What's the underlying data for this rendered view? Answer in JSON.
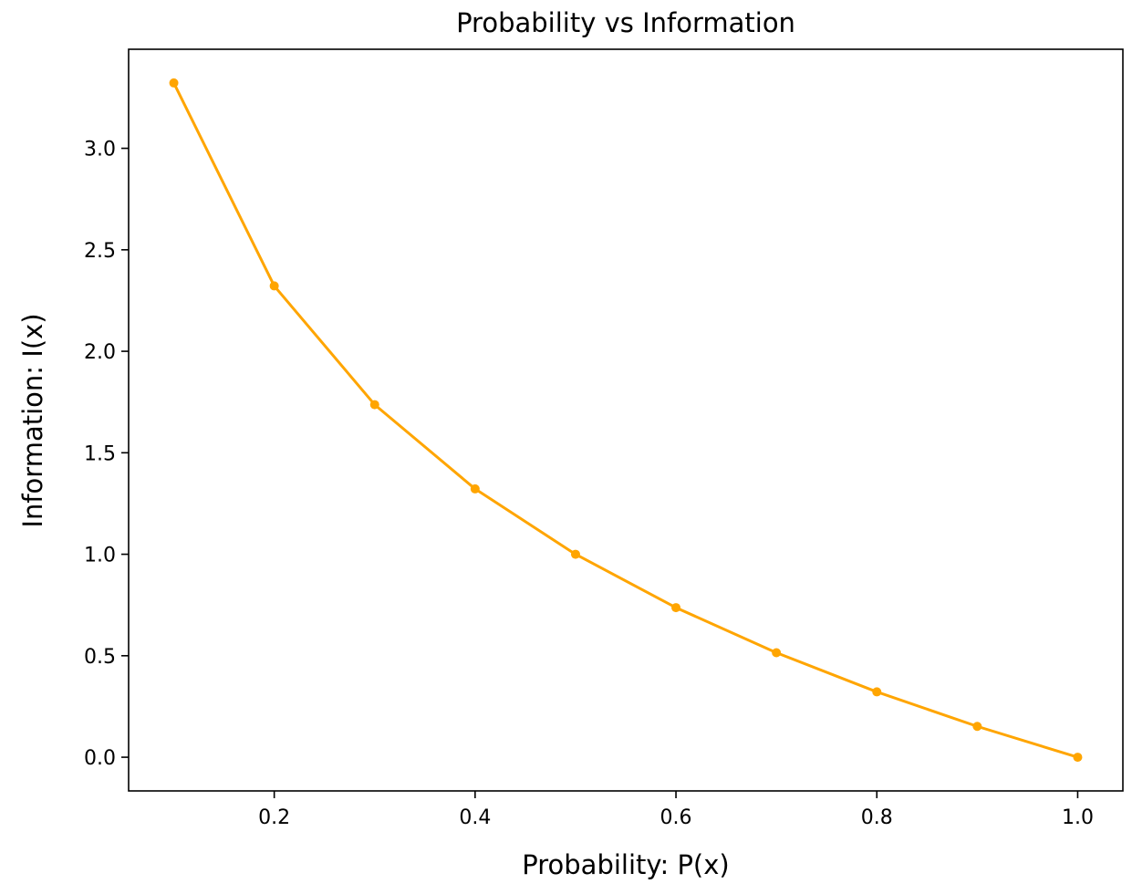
{
  "chart_data": {
    "type": "line",
    "title": "Probability vs Information",
    "xlabel": "Probability: P(x)",
    "ylabel": "Information: I(x)",
    "xlim": [
      0.055,
      1.045
    ],
    "ylim": [
      -0.166,
      3.488
    ],
    "grid": false,
    "xticks": [
      0.2,
      0.4,
      0.6,
      0.8,
      1.0
    ],
    "xtick_labels": [
      "0.2",
      "0.4",
      "0.6",
      "0.8",
      "1.0"
    ],
    "yticks": [
      0.0,
      0.5,
      1.0,
      1.5,
      2.0,
      2.5,
      3.0
    ],
    "ytick_labels": [
      "0.0",
      "0.5",
      "1.0",
      "1.5",
      "2.0",
      "2.5",
      "3.0"
    ],
    "series": [
      {
        "color": "#ffa500",
        "marker": "circle",
        "x": [
          0.1,
          0.2,
          0.3,
          0.4,
          0.5,
          0.6,
          0.7,
          0.8,
          0.9,
          1.0
        ],
        "y": [
          3.322,
          2.322,
          1.737,
          1.322,
          1.0,
          0.737,
          0.515,
          0.322,
          0.152,
          0.0
        ]
      }
    ]
  }
}
